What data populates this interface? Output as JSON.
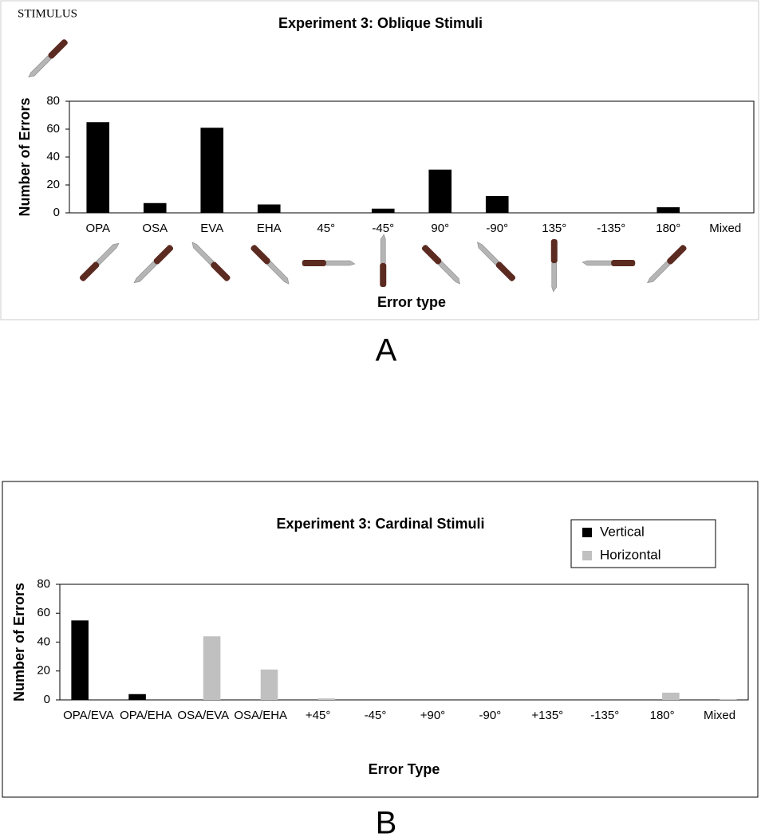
{
  "chart_data": [
    {
      "type": "bar",
      "title": "Experiment 3: Oblique Stimuli",
      "annotation": "STIMULUS",
      "panel_label": "A",
      "x_label": "Error type",
      "y_label": "Number of Errors",
      "categories": [
        "OPA",
        "OSA",
        "EVA",
        "EHA",
        "45°",
        "-45°",
        "90°",
        "-90°",
        "135°",
        "-135°",
        "180°",
        "Mixed"
      ],
      "values": [
        65,
        7,
        61,
        6,
        0,
        3,
        31,
        12,
        0,
        0,
        4,
        0
      ],
      "color": "#000000",
      "ylim": [
        0,
        80
      ],
      "yticks": [
        0,
        20,
        40,
        60,
        80
      ],
      "grid": false
    },
    {
      "type": "bar",
      "title": "Experiment 3: Cardinal Stimuli",
      "panel_label": "B",
      "x_label": "Error Type",
      "y_label": "Number of Errors",
      "categories": [
        "OPA/EVA",
        "OPA/EHA",
        "OSA/EVA",
        "OSA/EHA",
        "+45°",
        "-45°",
        "+90°",
        "-90°",
        "+135°",
        "-135°",
        "180°",
        "Mixed"
      ],
      "series": [
        {
          "name": "Vertical",
          "color": "#000000",
          "values": [
            55,
            4,
            0,
            0,
            0,
            0,
            0,
            0,
            0,
            0,
            0,
            0
          ]
        },
        {
          "name": "Horizontal",
          "color": "#c0c0c0",
          "values": [
            0,
            0,
            44,
            21,
            1,
            0,
            0,
            0,
            0,
            0,
            5,
            0.5
          ]
        }
      ],
      "ylim": [
        0,
        80
      ],
      "yticks": [
        0,
        20,
        40,
        60,
        80
      ],
      "grid": false,
      "legend": "upper right"
    }
  ]
}
